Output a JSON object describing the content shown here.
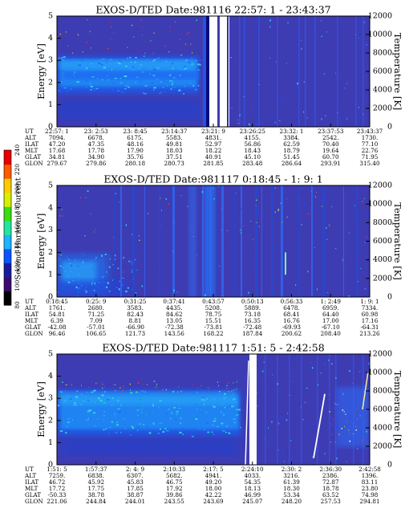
{
  "figure": {
    "colorbar": {
      "label": "Second Harmonic Current",
      "ticks": [
        "80",
        "100",
        "120",
        "140",
        "160",
        "180",
        "200",
        "220",
        "240"
      ],
      "colors": [
        "#000000",
        "#3b0a6e",
        "#1a1a9e",
        "#0b55ff",
        "#1ab4ff",
        "#22e6a0",
        "#3bdc12",
        "#d6f000",
        "#ffcc00",
        "#ff5a00",
        "#e60000"
      ]
    },
    "panel_ylabel_left": "Energy [eV]",
    "panel_ylabel_right": "Temperature [K]",
    "row_labels": [
      "UT",
      "ALT",
      "ILAT",
      "MLT",
      "GLAT",
      "GLON"
    ]
  },
  "chart_data": [
    {
      "type": "heatmap",
      "title": "EXOS-D/TED   Date:981116  22:57: 1 - 23:43:37",
      "ylabel": "Energy [eV]",
      "ylim": [
        0,
        5
      ],
      "y_ticks": [
        "0",
        "1",
        "2",
        "3",
        "4",
        "5"
      ],
      "y2label": "Temperature [K]",
      "y2lim": [
        0,
        12000
      ],
      "y2_ticks": [
        "0",
        "2000",
        "4000",
        "6000",
        "8000",
        "10000",
        "12000"
      ],
      "table": {
        "UT": [
          "22:57: 1",
          "23: 2:53",
          "23: 8:45",
          "23:14:37",
          "23:21: 9",
          "23:26:25",
          "23:32: 1",
          "23:37:53",
          "23:43:37"
        ],
        "ALT": [
          "7094.",
          "6678.",
          "6175.",
          "5583.",
          "4831.",
          "4155.",
          "3384.",
          "2542.",
          "1730."
        ],
        "ILAT": [
          "47.20",
          "47.35",
          "48.16",
          "49.81",
          "52.97",
          "56.86",
          "62.59",
          "70.40",
          "77.10"
        ],
        "MLT": [
          "17.68",
          "17.78",
          "17.90",
          "18.03",
          "18.22",
          "18.43",
          "18.79",
          "19.64",
          "22.76"
        ],
        "GLAT": [
          "34.81",
          "34.90",
          "35.76",
          "37.51",
          "40.91",
          "45.10",
          "51.45",
          "60.70",
          "71.95"
        ],
        "GLON": [
          "279.67",
          "279.86",
          "280.18",
          "280.73",
          "281.85",
          "283.48",
          "286.64",
          "293.91",
          "315.40"
        ]
      }
    },
    {
      "type": "heatmap",
      "title": "EXOS-D/TED   Date:981117  0:18:45 - 1: 9: 1",
      "ylabel": "Energy [eV]",
      "ylim": [
        0,
        5
      ],
      "y_ticks": [
        "0",
        "1",
        "2",
        "3",
        "4",
        "5"
      ],
      "y2label": "Temperature [K]",
      "y2lim": [
        0,
        12000
      ],
      "y2_ticks": [
        "0",
        "2000",
        "4000",
        "6000",
        "8000",
        "10000",
        "12000"
      ],
      "table": {
        "UT": [
          "0:18:45",
          "0:25: 9",
          "0:31:25",
          "0:37:41",
          "0:43:57",
          "0:50:13",
          "0:56:33",
          "1: 2:49",
          "1: 9: 1"
        ],
        "ALT": [
          "1761.",
          "2680.",
          "3583.",
          "4435.",
          "5208.",
          "5889.",
          "6478.",
          "6959.",
          "7334."
        ],
        "ILAT": [
          "54.81",
          "71.25",
          "82.43",
          "84.62",
          "78.75",
          "73.18",
          "68.41",
          "64.40",
          "60.98"
        ],
        "MLT": [
          "6.39",
          "7.09",
          "8.81",
          "13.05",
          "15.51",
          "16.35",
          "16.76",
          "17.00",
          "17.16"
        ],
        "GLAT": [
          "-42.08",
          "-57.01",
          "-66.90",
          "-72.38",
          "-73.81",
          "-72.48",
          "-69.93",
          "-67.10",
          "-64.31"
        ],
        "GLON": [
          "96.46",
          "106.65",
          "121.73",
          "143.56",
          "168.22",
          "187.84",
          "200.62",
          "208.40",
          "213.26"
        ]
      }
    },
    {
      "type": "heatmap",
      "title": "EXOS-D/TED   Date:981117  1:51: 5 - 2:42:58",
      "ylabel": "Energy [eV]",
      "ylim": [
        0,
        5
      ],
      "y_ticks": [
        "0",
        "1",
        "2",
        "3",
        "4",
        "5"
      ],
      "y2label": "Temperature [K]",
      "y2lim": [
        0,
        12000
      ],
      "y2_ticks": [
        "0",
        "2000",
        "4000",
        "6000",
        "8000",
        "10000",
        "12000"
      ],
      "table": {
        "UT": [
          "1:51: 5",
          "1:57:37",
          "2: 4: 9",
          "2:10:33",
          "2:17: 5",
          "2:24:10",
          "2:30: 2",
          "2:36:30",
          "2:42:58"
        ],
        "ALT": [
          "7259.",
          "6838.",
          "6307.",
          "5682.",
          "4941.",
          "4033.",
          "3216.",
          "2386.",
          "1396."
        ],
        "ILAT": [
          "46.72",
          "45.92",
          "45.83",
          "46.75",
          "49.20",
          "54.35",
          "61.39",
          "72.87",
          "83.11"
        ],
        "MLT": [
          "17.72",
          "17.75",
          "17.85",
          "17.92",
          "18.00",
          "18.13",
          "18.30",
          "18.78",
          "23.80"
        ],
        "GLAT": [
          "-50.33",
          "38.78",
          "38.87",
          "39.86",
          "42.22",
          "46.99",
          "53.34",
          "63.52",
          "74.98"
        ],
        "GLON": [
          "221.06",
          "244.84",
          "244.01",
          "243.55",
          "243.69",
          "245.07",
          "248.20",
          "257.53",
          "294.81"
        ]
      }
    }
  ]
}
